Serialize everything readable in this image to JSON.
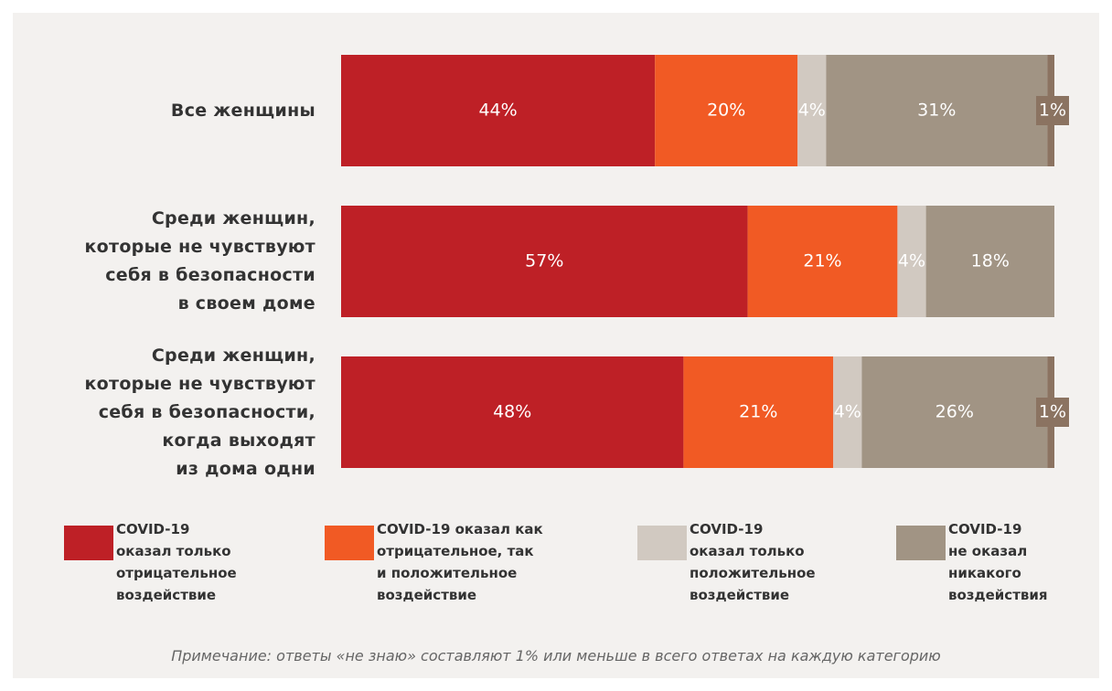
{
  "chart_data": {
    "type": "stacked_barh",
    "categories": [
      "Все женщины",
      "Среди женщин,\nкоторые не чувствуют\nсебя в безопасности\nв своем доме",
      "Среди женщин,\nкоторые не чувствуют\nсебя в безопасности,\nкогда выходят\nиз дома одни"
    ],
    "xlim": [
      0,
      100
    ],
    "series": [
      {
        "name": "COVID-19\nоказал только\nотрицательное\nвоздействие",
        "color": "#be2026",
        "values": [
          44,
          57,
          48
        ],
        "value_labels": [
          "44%",
          "57%",
          "48%"
        ]
      },
      {
        "name": "COVID-19 оказал как\nотрицательное, так\nи положительное\nвоздействие",
        "color": "#f15a24",
        "values": [
          20,
          21,
          21
        ],
        "value_labels": [
          "20%",
          "21%",
          "21%"
        ]
      },
      {
        "name": "COVID-19\nоказал только\nположительное\nвоздействие",
        "color": "#d1c9c1",
        "values": [
          4,
          4,
          4
        ],
        "value_labels": [
          "4%",
          "4%",
          "4%"
        ]
      },
      {
        "name": "COVID-19\nне оказал\nникакого\nвоздействия",
        "color": "#a19484",
        "values": [
          31,
          18,
          26
        ],
        "value_labels": [
          "31%",
          "18%",
          "26%"
        ]
      },
      {
        "color": "#8b7361",
        "values": [
          1,
          null,
          1
        ],
        "value_labels": [
          "1%",
          null,
          "1%"
        ]
      }
    ],
    "legend": "bottom",
    "note": "Примечание: ответы «не знаю» составляют 1% или меньше в всего ответах на каждую категорию"
  }
}
